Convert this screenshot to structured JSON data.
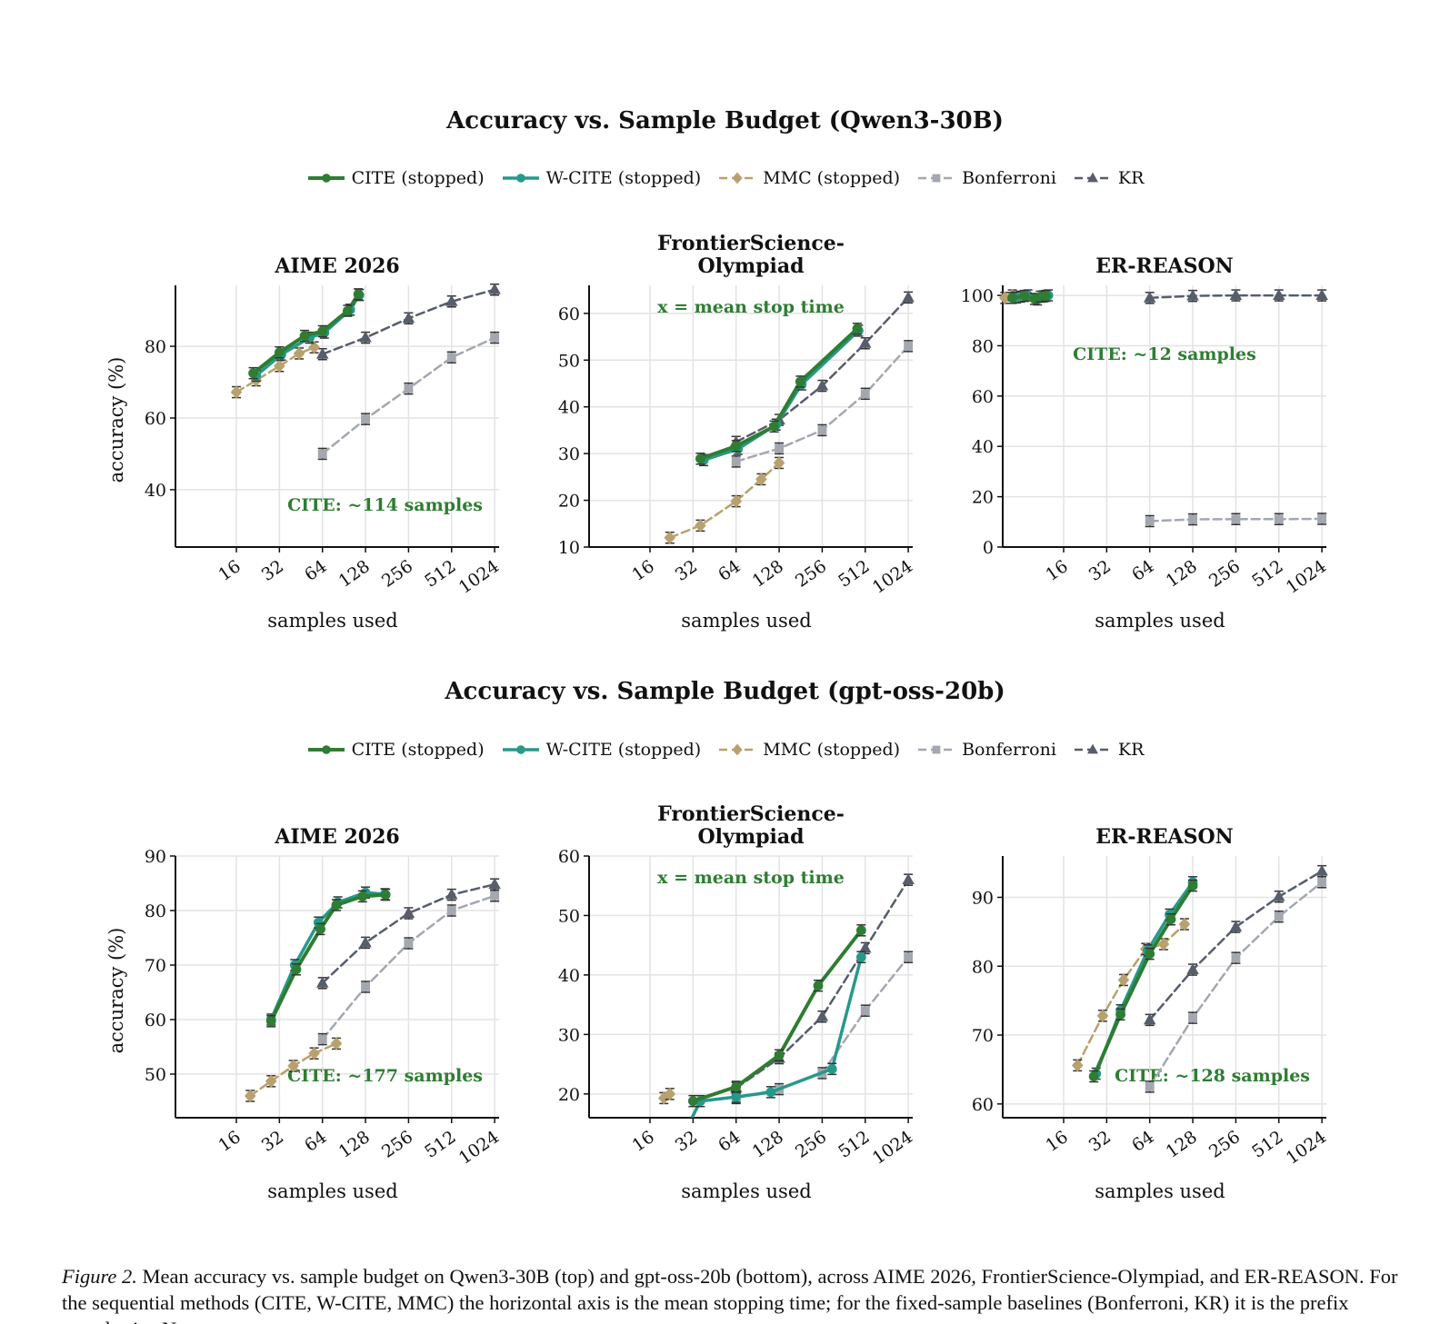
{
  "caption": {
    "label": "Figure 2.",
    "text": "Mean accuracy vs. sample budget on Qwen3-30B (top) and gpt-oss-20b (bottom), across AIME 2026, FrontierScience-Olympiad, and ER-REASON. For the sequential methods (CITE, W-CITE, MMC) the horizontal axis is the mean stopping time; for the fixed-sample baselines (Bonferroni, KR) it is the prefix sample size N."
  },
  "styles": {
    "CITE": {
      "color": "#2e7d32",
      "dash": "",
      "width": 4,
      "marker": "circle"
    },
    "W-CITE": {
      "color": "#26998a",
      "dash": "",
      "width": 3.5,
      "marker": "circle"
    },
    "MMC": {
      "color": "#b8a16e",
      "dash": "9 5",
      "width": 2.5,
      "marker": "diamond"
    },
    "Bonferroni": {
      "color": "#a3a7b0",
      "dash": "9 5",
      "width": 2.5,
      "marker": "square"
    },
    "KR": {
      "color": "#565d6b",
      "dash": "9 5",
      "width": 2.5,
      "marker": "triangle"
    }
  },
  "rows": [
    {
      "title": "Accuracy vs. Sample Budget (Qwen3-30B)",
      "legend": [
        {
          "key": "CITE",
          "label": "CITE (stopped)"
        },
        {
          "key": "W-CITE",
          "label": "W-CITE (stopped)"
        },
        {
          "key": "MMC",
          "label": "MMC (stopped)"
        },
        {
          "key": "Bonferroni",
          "label": "Bonferroni"
        },
        {
          "key": "KR",
          "label": "KR"
        }
      ]
    },
    {
      "title": "Accuracy vs. Sample Budget (gpt-oss-20b)",
      "legend": [
        {
          "key": "CITE",
          "label": "CITE (stopped)"
        },
        {
          "key": "W-CITE",
          "label": "W-CITE (stopped)"
        },
        {
          "key": "MMC",
          "label": "MMC (stopped)"
        },
        {
          "key": "Bonferroni",
          "label": "Bonferroni"
        },
        {
          "key": "KR",
          "label": "KR"
        }
      ]
    }
  ],
  "chart_data": [
    {
      "type": "line",
      "title": [
        "AIME 2026"
      ],
      "xlabel": "samples used",
      "ylabel": "accuracy (%)",
      "x_scale": "log2",
      "xlim": [
        6,
        1100
      ],
      "ylim": [
        24,
        97
      ],
      "xticks": [
        16,
        32,
        64,
        128,
        256,
        512,
        1024
      ],
      "yticks": [
        40,
        60,
        80
      ],
      "annotation": "CITE: ~114 samples",
      "annotation_pos": "bottom-right",
      "grid": true,
      "series": [
        {
          "key": "CITE",
          "x": [
            21,
            32,
            48,
            64,
            96,
            114
          ],
          "y": [
            72.5,
            78.3,
            82.9,
            84.2,
            89.9,
            94.5
          ]
        },
        {
          "key": "W-CITE",
          "x": [
            22,
            33,
            52,
            66,
            100,
            116
          ],
          "y": [
            71.8,
            77.7,
            82.4,
            83.8,
            90.2,
            94.3
          ]
        },
        {
          "key": "MMC",
          "x": [
            16,
            22,
            32,
            44,
            56
          ],
          "y": [
            67.2,
            70.5,
            74.5,
            78.0,
            79.7
          ]
        },
        {
          "key": "Bonferroni",
          "x": [
            64,
            128,
            256,
            512,
            1024
          ],
          "y": [
            50.0,
            59.7,
            68.2,
            76.9,
            82.4
          ]
        },
        {
          "key": "KR",
          "x": [
            64,
            128,
            256,
            512,
            1024
          ],
          "y": [
            77.8,
            82.4,
            87.8,
            92.5,
            95.8
          ]
        }
      ]
    },
    {
      "type": "line",
      "title": [
        "FrontierScience-",
        "Olympiad"
      ],
      "xlabel": "samples used",
      "ylabel": "",
      "x_scale": "log2",
      "xlim": [
        6,
        1100
      ],
      "ylim": [
        10,
        66
      ],
      "xticks": [
        16,
        32,
        64,
        128,
        256,
        512,
        1024
      ],
      "yticks": [
        10,
        20,
        30,
        40,
        50,
        60
      ],
      "annotation": "x = mean stop time",
      "annotation_pos": "top-center",
      "grid": true,
      "series": [
        {
          "key": "CITE",
          "x": [
            36,
            64,
            118,
            180,
            450
          ],
          "y": [
            28.9,
            31.6,
            35.8,
            45.4,
            56.7
          ]
        },
        {
          "key": "W-CITE",
          "x": [
            38,
            66,
            122,
            184,
            460
          ],
          "y": [
            28.6,
            31.0,
            36.2,
            44.8,
            56.3
          ]
        },
        {
          "key": "MMC",
          "x": [
            22,
            36,
            64,
            96,
            128
          ],
          "y": [
            12.0,
            14.6,
            19.8,
            24.5,
            28.0
          ]
        },
        {
          "key": "Bonferroni",
          "x": [
            64,
            128,
            256,
            512,
            1024
          ],
          "y": [
            28.3,
            31.1,
            35.0,
            42.8,
            53.0
          ]
        },
        {
          "key": "KR",
          "x": [
            64,
            128,
            256,
            512,
            1024
          ],
          "y": [
            32.5,
            37.2,
            44.5,
            53.6,
            63.4
          ]
        }
      ]
    },
    {
      "type": "line",
      "title": [
        "ER-REASON"
      ],
      "xlabel": "samples used",
      "ylabel": "",
      "x_scale": "log2",
      "xlim": [
        6,
        1100
      ],
      "ylim": [
        0,
        104
      ],
      "xticks": [
        16,
        32,
        64,
        128,
        256,
        512,
        1024
      ],
      "yticks": [
        0,
        20,
        40,
        60,
        80,
        100
      ],
      "annotation": "CITE: ~12 samples",
      "annotation_pos": "upper-left",
      "grid": true,
      "series": [
        {
          "key": "CITE",
          "x": [
            7,
            8.5,
            10,
            11,
            12
          ],
          "y": [
            99.0,
            99.8,
            98.6,
            99.5,
            99.8
          ]
        },
        {
          "key": "W-CITE",
          "x": [
            7.5,
            9,
            10.5,
            11.5,
            12.5
          ],
          "y": [
            99.2,
            100.0,
            98.4,
            99.6,
            100.0
          ]
        },
        {
          "key": "MMC",
          "x": [
            6.2,
            7,
            8
          ],
          "y": [
            99.0,
            100.0,
            99.5
          ]
        },
        {
          "key": "Bonferroni",
          "x": [
            64,
            128,
            256,
            512,
            1024
          ],
          "y": [
            10.3,
            11.0,
            11.1,
            11.1,
            11.2
          ]
        },
        {
          "key": "KR",
          "x": [
            64,
            128,
            256,
            512,
            1024
          ],
          "y": [
            99.0,
            99.8,
            100.0,
            100.0,
            100.0
          ]
        }
      ]
    },
    {
      "type": "line",
      "title": [
        "AIME 2026"
      ],
      "xlabel": "samples used",
      "ylabel": "accuracy (%)",
      "x_scale": "log2",
      "xlim": [
        6,
        1100
      ],
      "ylim": [
        42,
        90
      ],
      "xticks": [
        16,
        32,
        64,
        128,
        256,
        512,
        1024
      ],
      "yticks": [
        50,
        60,
        70,
        80,
        90
      ],
      "annotation": "CITE: ~177 samples",
      "annotation_pos": "bottom-right",
      "grid": true,
      "series": [
        {
          "key": "CITE",
          "x": [
            28,
            42,
            62,
            80,
            122,
            177
          ],
          "y": [
            59.7,
            69.2,
            76.6,
            81.0,
            82.6,
            82.9
          ]
        },
        {
          "key": "W-CITE",
          "x": [
            28,
            41,
            60,
            82,
            128,
            175
          ],
          "y": [
            60.0,
            70.0,
            77.8,
            81.5,
            83.3,
            83.0
          ]
        },
        {
          "key": "MMC",
          "x": [
            20,
            28,
            40,
            56,
            80
          ],
          "y": [
            46.0,
            48.7,
            51.5,
            53.8,
            55.6
          ]
        },
        {
          "key": "Bonferroni",
          "x": [
            64,
            128,
            256,
            512,
            1024
          ],
          "y": [
            56.4,
            66.0,
            74.0,
            80.0,
            82.7
          ]
        },
        {
          "key": "KR",
          "x": [
            64,
            128,
            256,
            512,
            1024
          ],
          "y": [
            66.7,
            74.1,
            79.5,
            82.9,
            84.8
          ]
        }
      ]
    },
    {
      "type": "line",
      "title": [
        "FrontierScience-",
        "Olympiad"
      ],
      "xlabel": "samples used",
      "ylabel": "",
      "x_scale": "log2",
      "xlim": [
        6,
        1100
      ],
      "ylim": [
        16,
        60
      ],
      "xticks": [
        16,
        32,
        64,
        128,
        256,
        512,
        1024
      ],
      "yticks": [
        20,
        30,
        40,
        50,
        60
      ],
      "annotation": "x = mean stop time",
      "annotation_pos": "top-center",
      "grid": true,
      "series": [
        {
          "key": "CITE",
          "x": [
            32,
            64,
            128,
            240,
            480
          ],
          "y": [
            18.8,
            21.2,
            26.5,
            38.2,
            47.5
          ]
        },
        {
          "key": "W-CITE",
          "x": [
            30,
            36,
            64,
            112,
            300,
            480
          ],
          "y": [
            15.0,
            18.8,
            19.5,
            20.3,
            24.2,
            43.0
          ]
        },
        {
          "key": "MMC",
          "x": [
            20,
            22
          ],
          "y": [
            19.3,
            20.0
          ]
        },
        {
          "key": "Bonferroni",
          "x": [
            64,
            128,
            256,
            512,
            1024
          ],
          "y": [
            19.3,
            20.8,
            23.5,
            34.0,
            43.0
          ]
        },
        {
          "key": "KR",
          "x": [
            64,
            128,
            256,
            512,
            1024
          ],
          "y": [
            21.0,
            26.0,
            33.0,
            44.5,
            56.0
          ]
        }
      ]
    },
    {
      "type": "line",
      "title": [
        "ER-REASON"
      ],
      "xlabel": "samples used",
      "ylabel": "",
      "x_scale": "log2",
      "xlim": [
        6,
        1100
      ],
      "ylim": [
        58,
        96
      ],
      "xticks": [
        16,
        32,
        64,
        128,
        256,
        512,
        1024
      ],
      "yticks": [
        60,
        70,
        80,
        90
      ],
      "annotation": "CITE: ~128 samples",
      "annotation_pos": "bottom-right",
      "grid": true,
      "series": [
        {
          "key": "CITE",
          "x": [
            26,
            40,
            64,
            90,
            128
          ],
          "y": [
            64.0,
            73.0,
            81.8,
            86.8,
            91.7
          ]
        },
        {
          "key": "W-CITE",
          "x": [
            27,
            40,
            62,
            88,
            128
          ],
          "y": [
            64.4,
            73.6,
            82.3,
            87.5,
            92.2
          ]
        },
        {
          "key": "MMC",
          "x": [
            20,
            30,
            42,
            60,
            80,
            112
          ],
          "y": [
            65.6,
            72.8,
            78.0,
            82.5,
            83.2,
            86.1
          ]
        },
        {
          "key": "Bonferroni",
          "x": [
            64,
            128,
            256,
            512,
            1024
          ],
          "y": [
            62.5,
            72.5,
            81.2,
            87.2,
            92.2
          ]
        },
        {
          "key": "KR",
          "x": [
            64,
            128,
            256,
            512,
            1024
          ],
          "y": [
            72.2,
            79.5,
            85.7,
            90.1,
            93.8
          ]
        }
      ]
    }
  ]
}
